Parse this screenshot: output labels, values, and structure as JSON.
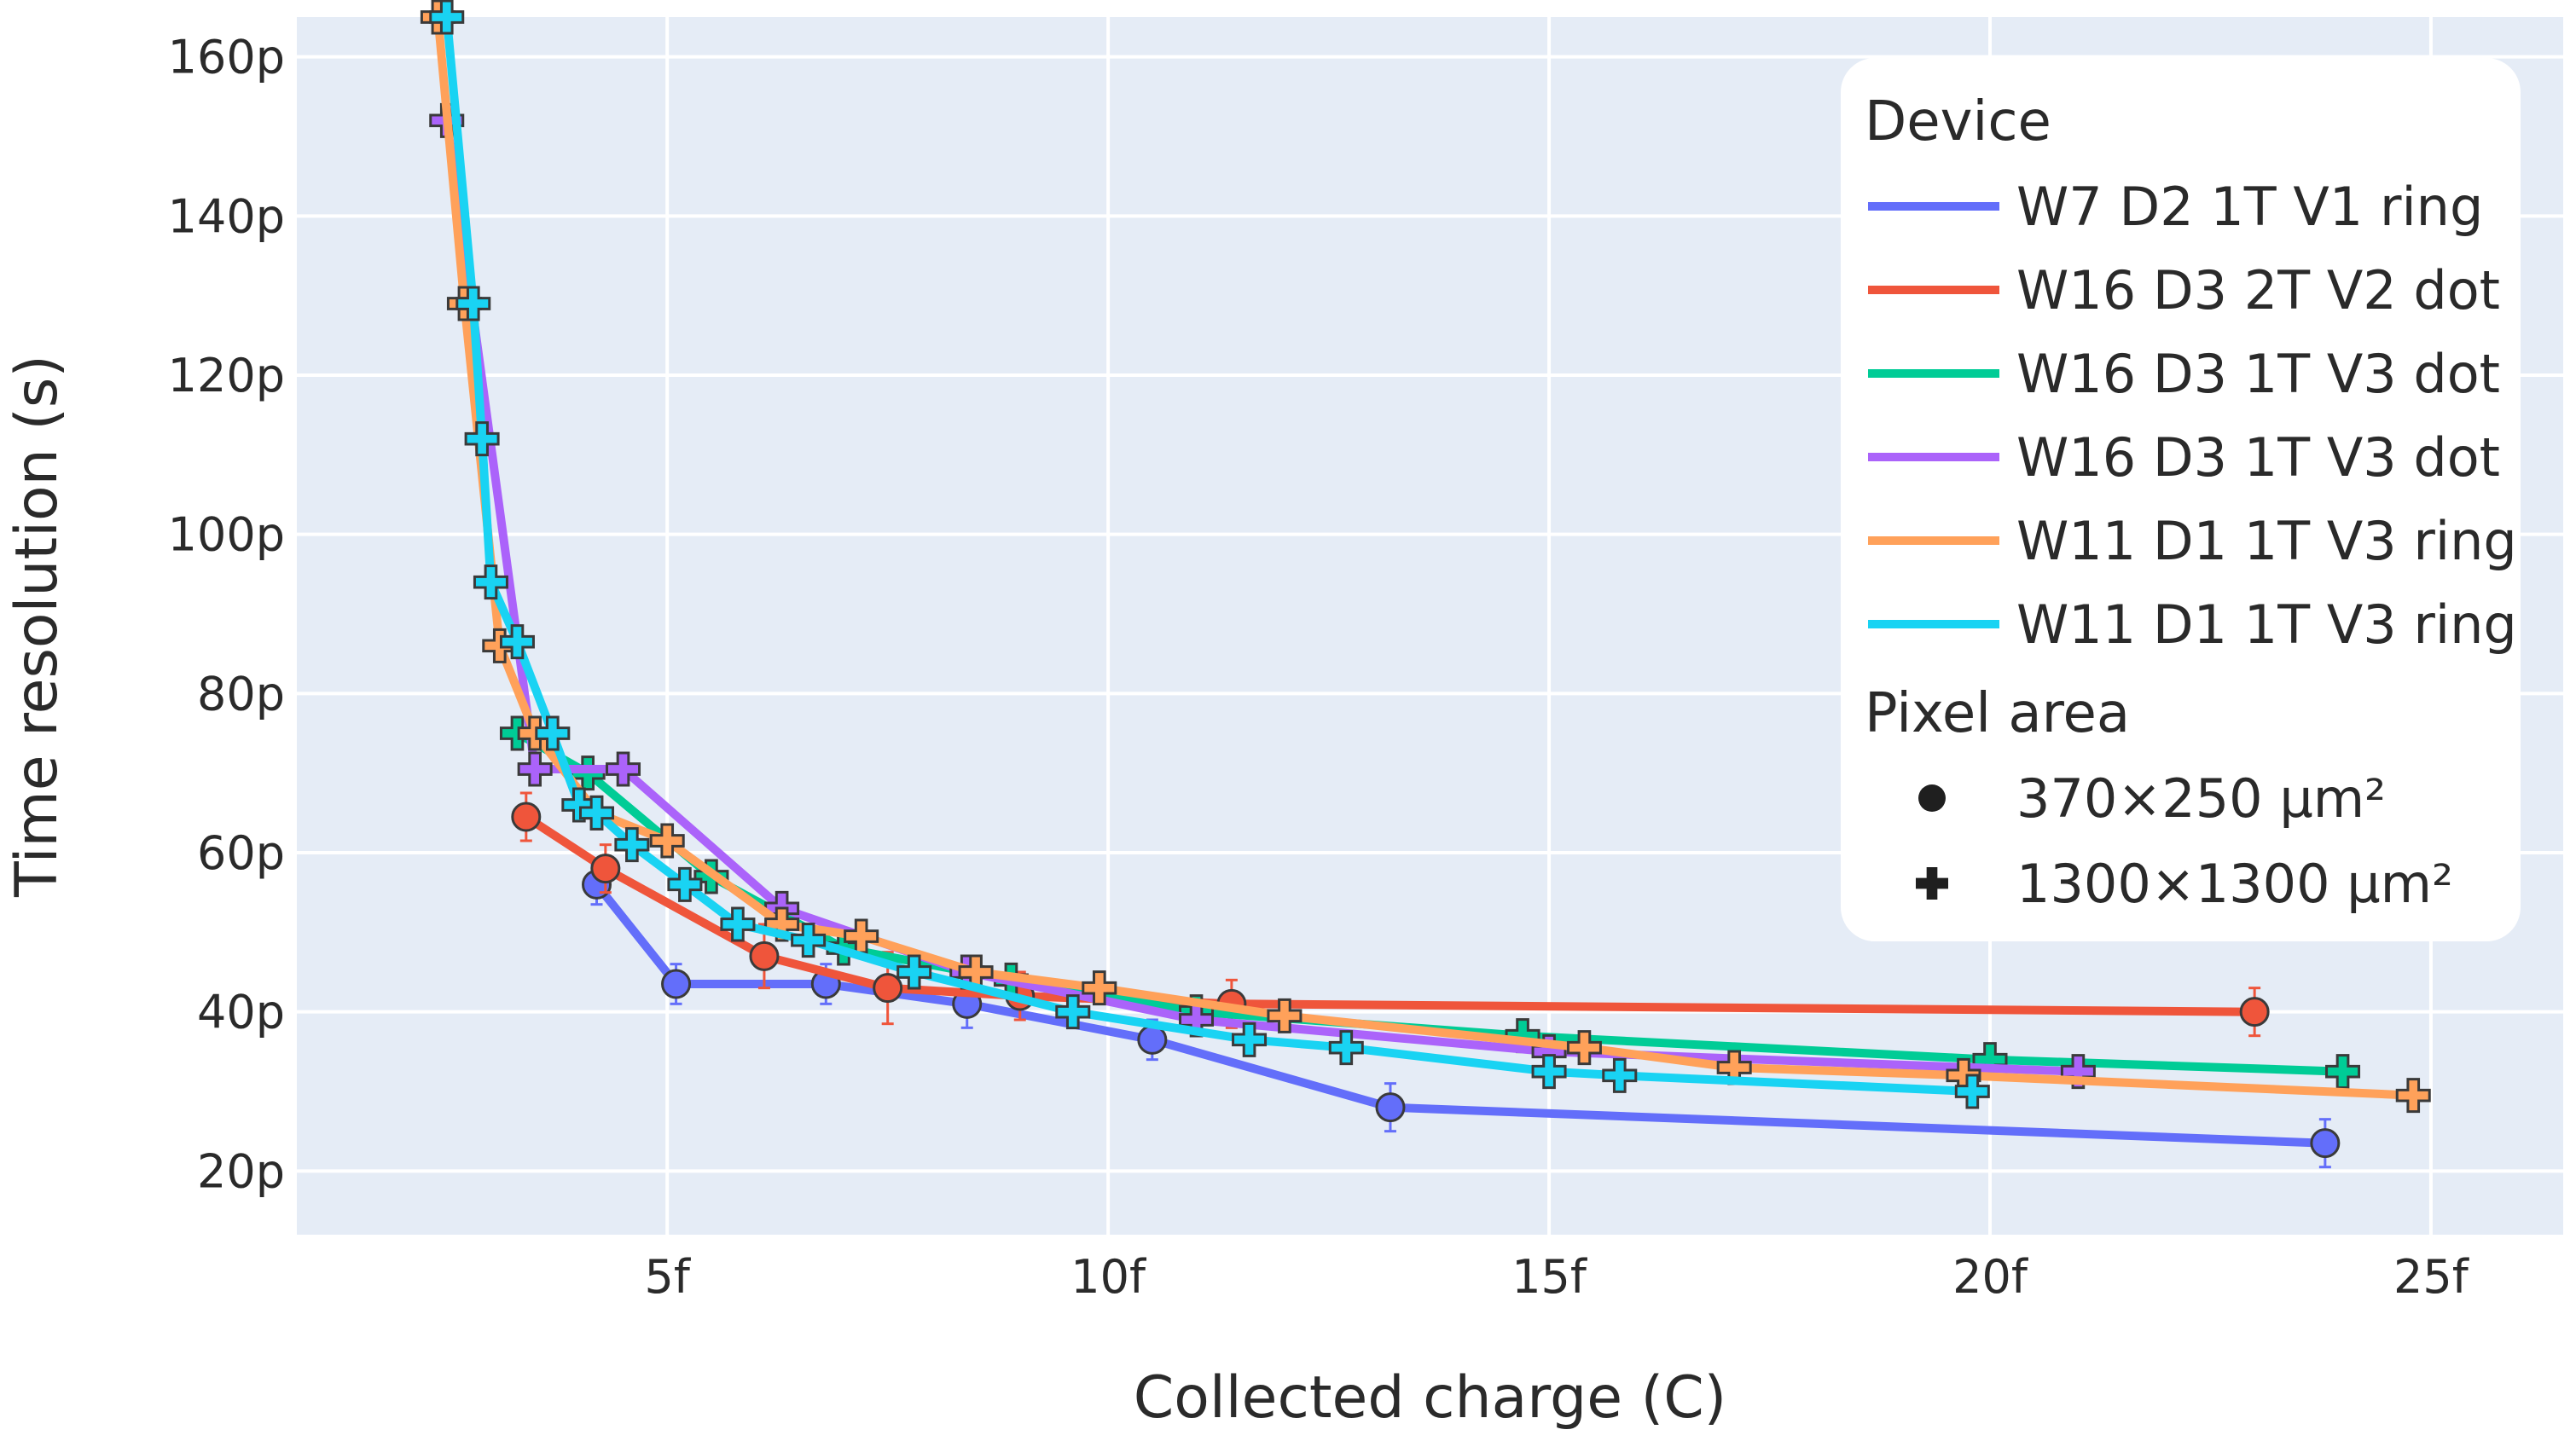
{
  "chart_data": {
    "type": "line",
    "title": "",
    "xlabel": "Collected charge (C)",
    "ylabel": "Time resolution (s)",
    "xlim": [
      8e-16,
      2.65e-14
    ],
    "ylim": [
      1.2e-11,
      1.65e-10
    ],
    "x_ticks": [
      {
        "value": 5e-15,
        "label": "5f"
      },
      {
        "value": 1e-14,
        "label": "10f"
      },
      {
        "value": 1.5e-14,
        "label": "15f"
      },
      {
        "value": 2e-14,
        "label": "20f"
      },
      {
        "value": 2.5e-14,
        "label": "25f"
      }
    ],
    "y_ticks": [
      {
        "value": 2e-11,
        "label": "20p"
      },
      {
        "value": 4e-11,
        "label": "40p"
      },
      {
        "value": 6e-11,
        "label": "60p"
      },
      {
        "value": 8e-11,
        "label": "80p"
      },
      {
        "value": 1e-10,
        "label": "100p"
      },
      {
        "value": 1.2e-10,
        "label": "120p"
      },
      {
        "value": 1.4e-10,
        "label": "140p"
      },
      {
        "value": 1.6e-10,
        "label": "160p"
      }
    ],
    "grid": true,
    "background": "#e5ecf6",
    "legend": {
      "position": "top-right",
      "device_title": "Device",
      "area_title": "Pixel area",
      "area_items": [
        {
          "symbol": "circle",
          "label": "370×250 µm²"
        },
        {
          "symbol": "cross",
          "label": "1300×1300 µm²"
        }
      ]
    },
    "series": [
      {
        "name": "W7 D2 1T V1 ring",
        "color": "#636efa",
        "symbol": "circle",
        "x": [
          4.2e-15,
          5.1e-15,
          6.8e-15,
          8.4e-15,
          1.05e-14,
          1.32e-14,
          2.38e-14
        ],
        "y": [
          5.6e-11,
          4.35e-11,
          4.35e-11,
          4.1e-11,
          3.65e-11,
          2.8e-11,
          2.35e-11
        ],
        "y_err": [
          2.5e-12,
          2.5e-12,
          2.5e-12,
          3e-12,
          2.5e-12,
          3e-12,
          3e-12
        ]
      },
      {
        "name": "W16 D3 2T V2 dot",
        "color": "#ef553b",
        "symbol": "circle",
        "x": [
          3.4e-15,
          4.3e-15,
          6.1e-15,
          7.5e-15,
          9e-15,
          1.14e-14,
          2.3e-14
        ],
        "y": [
          6.45e-11,
          5.8e-11,
          4.7e-11,
          4.3e-11,
          4.2e-11,
          4.1e-11,
          4e-11
        ],
        "y_err": [
          3e-12,
          3e-12,
          4e-12,
          4.5e-12,
          3e-12,
          3e-12,
          3e-12
        ]
      },
      {
        "name": "W16 D3 1T V3 dot",
        "color": "#00cc96",
        "symbol": "cross",
        "x": [
          3.3e-15,
          4.1e-15,
          5.5e-15,
          7e-15,
          8.9e-15,
          1.1e-14,
          1.47e-14,
          2e-14,
          2.4e-14
        ],
        "y": [
          7.5e-11,
          7e-11,
          5.7e-11,
          4.8e-11,
          4.4e-11,
          4e-11,
          3.7e-11,
          3.4e-11,
          3.25e-11
        ],
        "y_err": [
          0,
          0,
          0,
          0,
          0,
          0,
          0,
          0,
          0
        ]
      },
      {
        "name": "W16 D3 1T V3 dot",
        "color": "#ab63fa",
        "symbol": "cross",
        "x": [
          2.5e-15,
          3.5e-15,
          4.5e-15,
          6.3e-15,
          8.4e-15,
          1.1e-14,
          1.5e-14,
          2.1e-14
        ],
        "y": [
          1.52e-10,
          7.05e-11,
          7.05e-11,
          5.3e-11,
          4.5e-11,
          3.9e-11,
          3.5e-11,
          3.25e-11
        ],
        "y_err": [
          0,
          0,
          0,
          0,
          0,
          0,
          0,
          0
        ]
      },
      {
        "name": "W11 D1 1T V3 ring",
        "color": "#ffa15a",
        "symbol": "cross",
        "x": [
          2.4e-15,
          2.7e-15,
          3.1e-15,
          3.5e-15,
          4.2e-15,
          5e-15,
          6.3e-15,
          7.2e-15,
          8.5e-15,
          9.9e-15,
          1.2e-14,
          1.54e-14,
          1.71e-14,
          1.97e-14,
          2.48e-14
        ],
        "y": [
          1.65e-10,
          1.29e-10,
          8.6e-11,
          7.5e-11,
          6.5e-11,
          6.15e-11,
          5.1e-11,
          4.95e-11,
          4.5e-11,
          4.3e-11,
          3.95e-11,
          3.55e-11,
          3.3e-11,
          3.2e-11,
          2.95e-11
        ],
        "y_err": [
          0,
          0,
          0,
          0,
          0,
          0,
          0,
          0,
          0,
          0,
          0,
          0,
          0,
          0,
          0
        ]
      },
      {
        "name": "W11 D1 1T V3 ring",
        "color": "#19d3f3",
        "symbol": "cross",
        "x": [
          2.5e-15,
          2.8e-15,
          2.9e-15,
          3e-15,
          3.3e-15,
          3.7e-15,
          4e-15,
          4.2e-15,
          4.6e-15,
          5.2e-15,
          5.8e-15,
          6.6e-15,
          7.8e-15,
          9.6e-15,
          1.16e-14,
          1.27e-14,
          1.5e-14,
          1.58e-14,
          1.98e-14
        ],
        "y": [
          1.65e-10,
          1.29e-10,
          1.12e-10,
          9.4e-11,
          8.65e-11,
          7.5e-11,
          6.6e-11,
          6.5e-11,
          6.1e-11,
          5.6e-11,
          5.1e-11,
          4.9e-11,
          4.5e-11,
          4e-11,
          3.65e-11,
          3.55e-11,
          3.25e-11,
          3.2e-11,
          3e-11
        ],
        "y_err": [
          0,
          0,
          0,
          0,
          0,
          0,
          0,
          0,
          0,
          0,
          0,
          0,
          0,
          0,
          0,
          0,
          0,
          0,
          0
        ]
      }
    ]
  }
}
